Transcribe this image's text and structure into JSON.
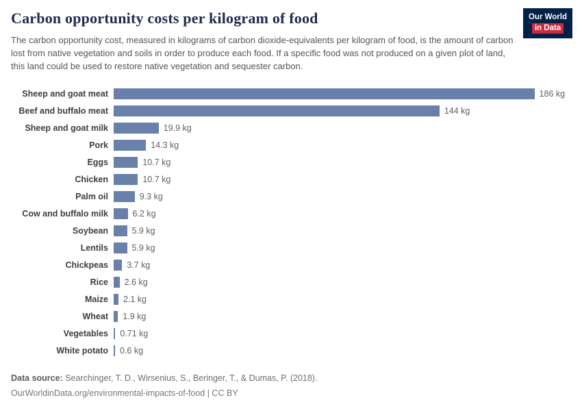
{
  "header": {
    "title": "Carbon opportunity costs per kilogram of food",
    "subtitle": "The carbon opportunity cost, measured in kilograms of carbon dioxide-equivalents per kilogram of food, is the amount of carbon lost from native vegetation and soils in order to produce each food. If a specific food was not produced on a given plot of land, this land could be used to restore native vegetation and sequester carbon.",
    "logo": {
      "line1": "Our World",
      "line2": "in Data"
    }
  },
  "chart_data": {
    "type": "bar",
    "orientation": "horizontal",
    "title": "Carbon opportunity costs per kilogram of food",
    "xlabel": "",
    "ylabel": "",
    "xlim": [
      0,
      186
    ],
    "grid": false,
    "legend": false,
    "unit": "kg",
    "bar_color": "#6880aa",
    "categories": [
      "Sheep and goat meat",
      "Beef and buffalo meat",
      "Sheep and goat milk",
      "Pork",
      "Eggs",
      "Chicken",
      "Palm oil",
      "Cow and buffalo milk",
      "Soybean",
      "Lentils",
      "Chickpeas",
      "Rice",
      "Maize",
      "Wheat",
      "Vegetables",
      "White potato"
    ],
    "values": [
      186,
      144,
      19.9,
      14.3,
      10.7,
      10.7,
      9.3,
      6.2,
      5.9,
      5.9,
      3.7,
      2.6,
      2.1,
      1.9,
      0.71,
      0.6
    ],
    "value_labels": [
      "186 kg",
      "144 kg",
      "19.9 kg",
      "14.3 kg",
      "10.7 kg",
      "10.7 kg",
      "9.3 kg",
      "6.2 kg",
      "5.9 kg",
      "5.9 kg",
      "3.7 kg",
      "2.6 kg",
      "2.1 kg",
      "1.9 kg",
      "0.71 kg",
      "0.6 kg"
    ]
  },
  "footer": {
    "source_label": "Data source:",
    "source_text": "Searchinger, T. D., Wirsenius, S., Beringer, T., & Dumas, P. (2018).",
    "note": "OurWorldinData.org/environmental-impacts-of-food | CC BY"
  }
}
